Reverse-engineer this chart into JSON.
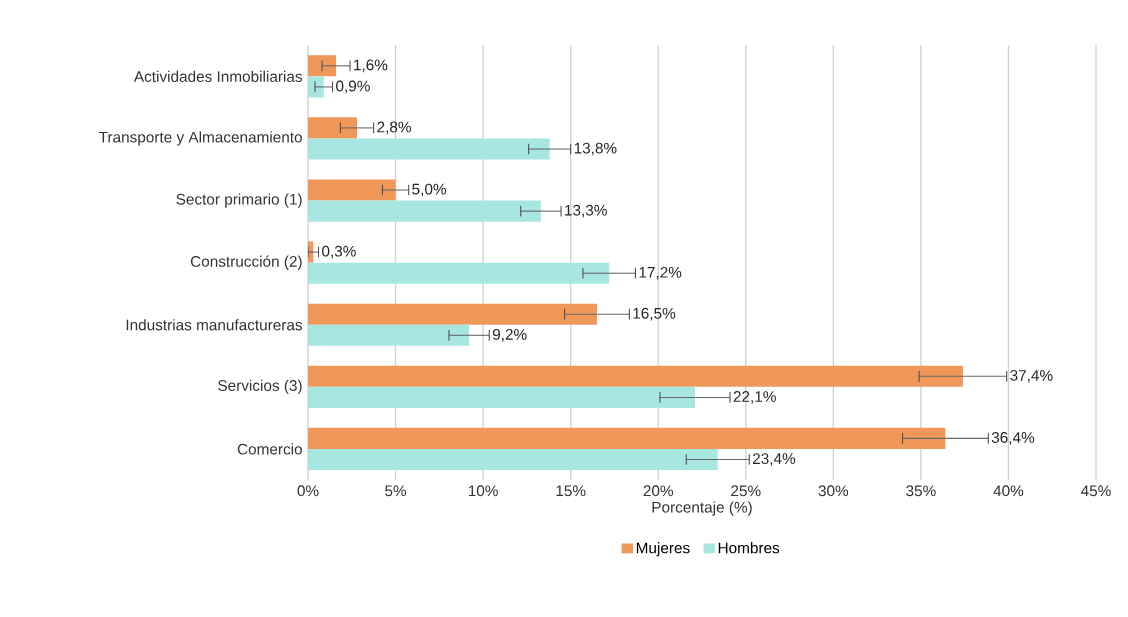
{
  "chart_data": {
    "type": "bar",
    "orientation": "horizontal",
    "xlabel": "Porcentaje (%)",
    "categories": [
      "Actividades Inmobiliarias",
      "Transporte y Almacenamiento",
      "Sector primario (1)",
      "Construcción (2)",
      "Industrias manufactureras",
      "Servicios (3)",
      "Comercio"
    ],
    "series": [
      {
        "name": "Mujeres",
        "color": "#f0975a",
        "values": [
          1.6,
          2.8,
          5.0,
          0.3,
          16.5,
          37.4,
          36.4
        ],
        "errors": [
          0.8,
          0.95,
          0.75,
          0.3,
          1.85,
          2.5,
          2.45
        ],
        "value_labels": [
          "1,6%",
          "2,8%",
          "5,0%",
          "0,3%",
          "16,5%",
          "37,4%",
          "36,4%"
        ]
      },
      {
        "name": "Hombres",
        "color": "#a8e6e2",
        "values": [
          0.9,
          13.8,
          13.3,
          17.2,
          9.2,
          22.1,
          23.4
        ],
        "errors": [
          0.5,
          1.2,
          1.15,
          1.5,
          1.15,
          2.0,
          1.8
        ],
        "value_labels": [
          "0,9%",
          "13,8%",
          "13,3%",
          "17,2%",
          "9,2%",
          "22,1%",
          "23,4%"
        ]
      }
    ],
    "xlim": [
      0,
      45
    ],
    "xticks": [
      {
        "value": 0,
        "label": "0%"
      },
      {
        "value": 5,
        "label": "5%"
      },
      {
        "value": 10,
        "label": "10%"
      },
      {
        "value": 15,
        "label": "15%"
      },
      {
        "value": 20,
        "label": "20%"
      },
      {
        "value": 25,
        "label": "25%"
      },
      {
        "value": 30,
        "label": "30%"
      },
      {
        "value": 35,
        "label": "35%"
      },
      {
        "value": 40,
        "label": "40%"
      },
      {
        "value": 45,
        "label": "45%"
      }
    ],
    "grid": "x",
    "legend": "bottom"
  }
}
